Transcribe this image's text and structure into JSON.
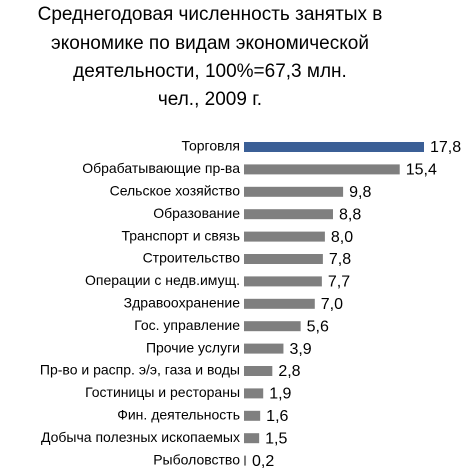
{
  "chart_data": {
    "type": "bar",
    "orientation": "horizontal",
    "title": [
      "Среднегодовая численность занятых в",
      "экономике по видам экономической",
      "деятельности, 100%=67,3 млн.",
      "чел., 2009 г."
    ],
    "categories": [
      "Торговля",
      "Обрабатывающие пр-ва",
      "Сельское хозяйство",
      "Образование",
      "Транспорт и связь",
      "Строительство",
      "Операции с недв.имущ.",
      "Здравоохранение",
      "Гос. управление",
      "Прочие услуги",
      "Пр-во и распр. э/э, газа и воды",
      "Гостиницы и рестораны",
      "Фин. деятельность",
      "Добыча полезных ископаемых",
      "Рыболовство"
    ],
    "values": [
      17.8,
      15.4,
      9.8,
      8.8,
      8.0,
      7.8,
      7.7,
      7.0,
      5.6,
      3.9,
      2.8,
      1.9,
      1.6,
      1.5,
      0.2
    ],
    "value_labels": [
      "17,8",
      "15,4",
      "9,8",
      "8,8",
      "8,0",
      "7,8",
      "7,7",
      "7,0",
      "5,6",
      "3,9",
      "2,8",
      "1,9",
      "1,6",
      "1,5",
      "0,2"
    ],
    "colors": [
      "#3b5f96",
      "#7f7f7f",
      "#7f7f7f",
      "#7f7f7f",
      "#7f7f7f",
      "#7f7f7f",
      "#7f7f7f",
      "#7f7f7f",
      "#7f7f7f",
      "#7f7f7f",
      "#7f7f7f",
      "#7f7f7f",
      "#7f7f7f",
      "#7f7f7f",
      "#7f7f7f"
    ]
  }
}
